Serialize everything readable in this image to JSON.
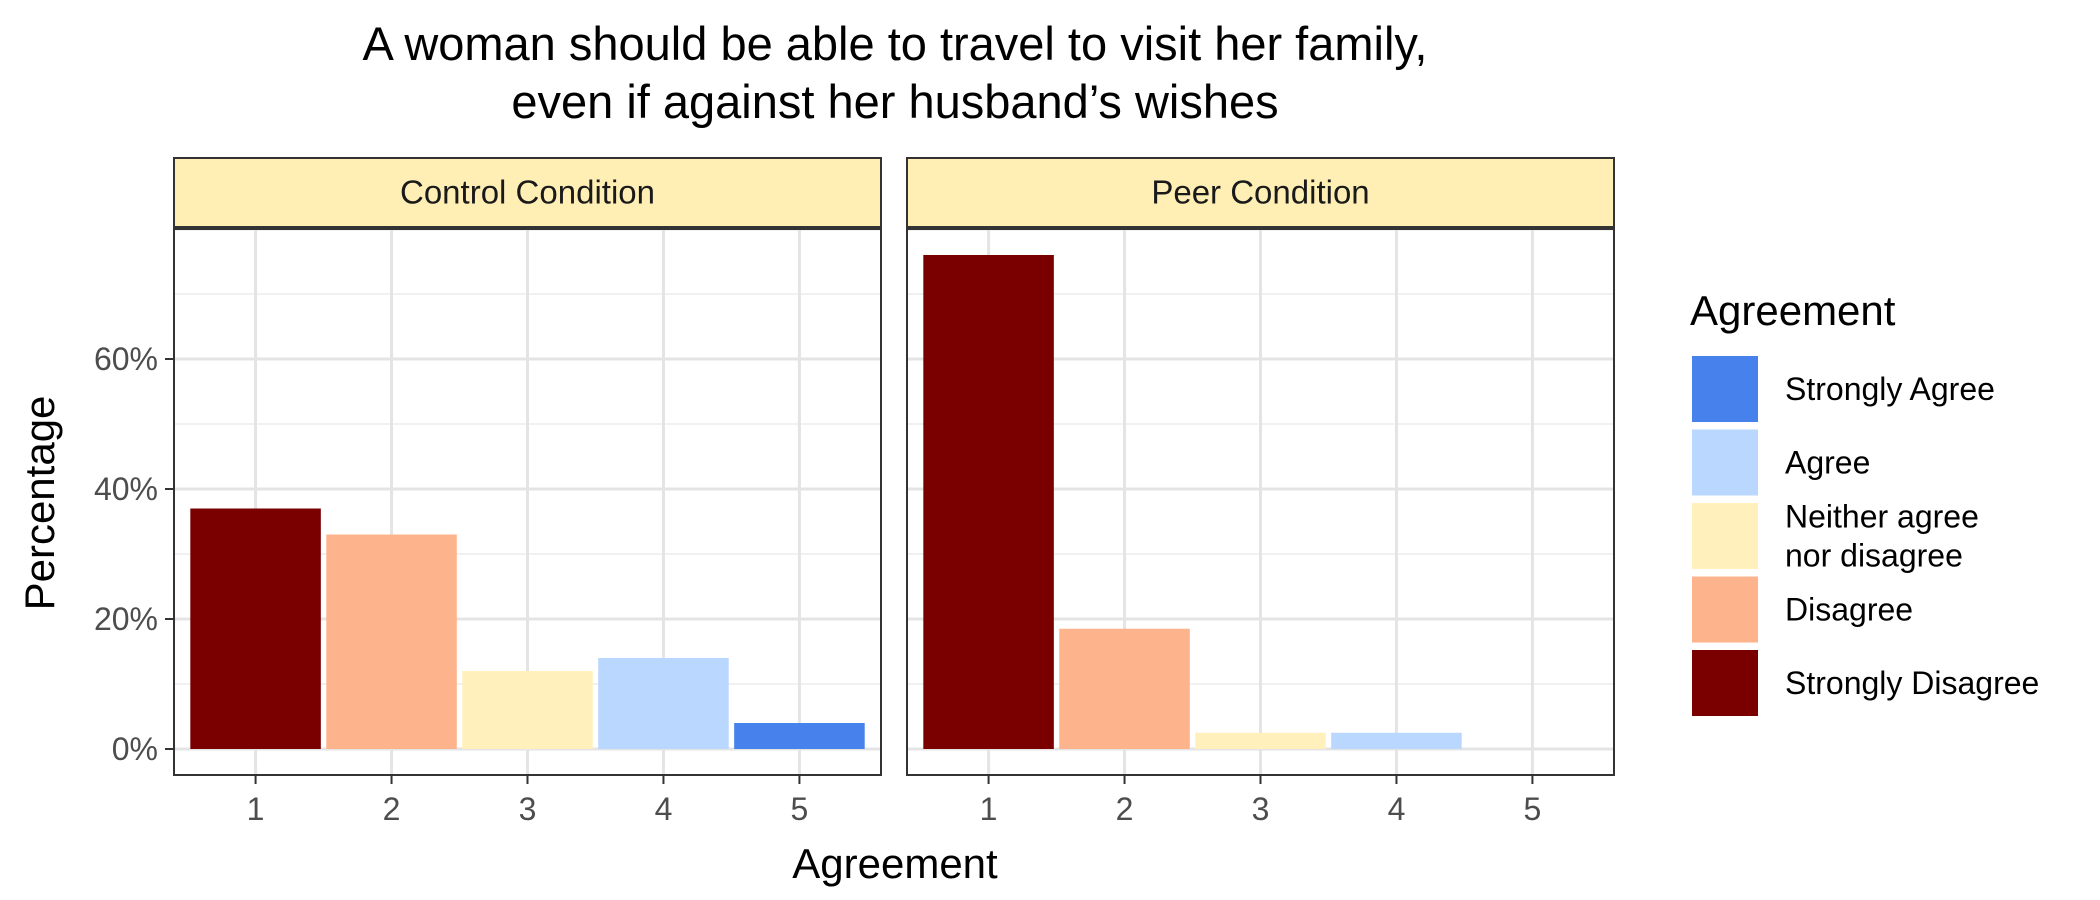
{
  "chart_data": {
    "type": "bar",
    "title_lines": [
      "A woman should be able to travel to visit her family,",
      "even if against her husband’s wishes"
    ],
    "xlabel": "Agreement",
    "ylabel": "Percentage",
    "categories": [
      "1",
      "2",
      "3",
      "4",
      "5"
    ],
    "ylim": [
      -4,
      80
    ],
    "yticks": [
      0,
      20,
      40,
      60
    ],
    "ytick_labels": [
      "0%",
      "20%",
      "40%",
      "60%"
    ],
    "panels": [
      {
        "name": "Control Condition",
        "values": [
          37,
          33,
          12,
          14,
          4
        ]
      },
      {
        "name": "Peer Condition",
        "values": [
          76,
          18.5,
          2.5,
          2.5,
          0
        ]
      }
    ],
    "category_colors": [
      "#7a0000",
      "#fdb38b",
      "#fff0bc",
      "#b9d7ff",
      "#4681ec"
    ],
    "grid": true,
    "legend": {
      "title": "Agreement",
      "position": "right",
      "entries": [
        {
          "label_lines": [
            "Strongly Agree"
          ],
          "color": "#4681ec"
        },
        {
          "label_lines": [
            "Agree"
          ],
          "color": "#b9d7ff"
        },
        {
          "label_lines": [
            "Neither agree",
            "nor disagree"
          ],
          "color": "#fff0bc"
        },
        {
          "label_lines": [
            "Disagree"
          ],
          "color": "#fdb38b"
        },
        {
          "label_lines": [
            "Strongly Disagree"
          ],
          "color": "#7a0000"
        }
      ]
    },
    "strip_color": "#ffefb5"
  }
}
